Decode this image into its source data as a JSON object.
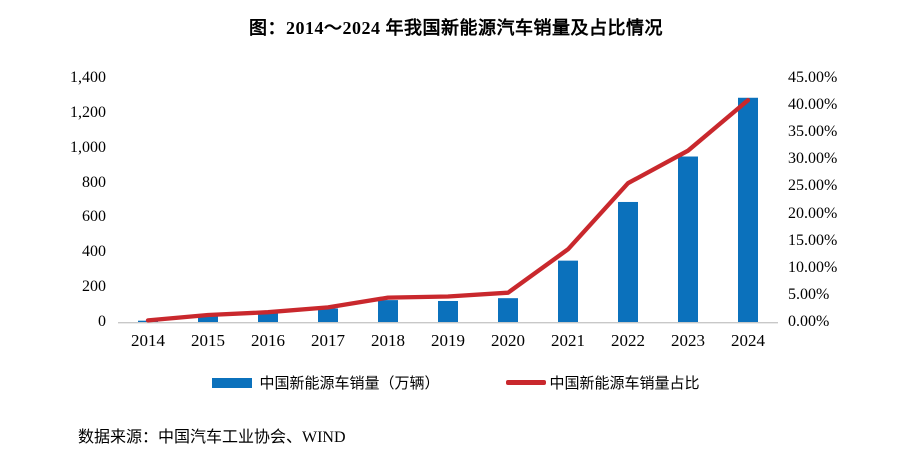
{
  "title": "图：2014～2024 年我国新能源汽车销量及占比情况",
  "source": "数据来源：中国汽车工业协会、WIND",
  "colors": {
    "bar": "#0b71bc",
    "line": "#c9282d",
    "axis_line": "#c8c8c8",
    "text": "#000000"
  },
  "legend": [
    {
      "label": "中国新能源车销量（万辆）",
      "type": "bar",
      "color": "#0b71bc"
    },
    {
      "label": "中国新能源车销量占比",
      "type": "line",
      "color": "#c9282d"
    }
  ],
  "chart_data": {
    "type": "bar+line",
    "title": "图：2014～2024 年我国新能源汽车销量及占比情况",
    "categories": [
      "2014",
      "2015",
      "2016",
      "2017",
      "2018",
      "2019",
      "2020",
      "2021",
      "2022",
      "2023",
      "2024"
    ],
    "series": [
      {
        "name": "中国新能源车销量（万辆）",
        "type": "bar",
        "axis": "left",
        "color": "#0b71bc",
        "values": [
          7.5,
          33.1,
          50.7,
          77.7,
          125.6,
          120.6,
          136.7,
          352.1,
          688.7,
          949.5,
          1286.6
        ]
      },
      {
        "name": "中国新能源车销量占比",
        "type": "line",
        "axis": "right",
        "color": "#c9282d",
        "values_percent": [
          0.3,
          1.3,
          1.8,
          2.7,
          4.5,
          4.7,
          5.4,
          13.4,
          25.6,
          31.6,
          40.9
        ]
      }
    ],
    "left_axis": {
      "min": 0,
      "max": 1400,
      "ticks": [
        "1,400",
        "1,200",
        "1,000",
        "800",
        "600",
        "400",
        "200",
        "0"
      ]
    },
    "right_axis": {
      "min": 0,
      "max": 45,
      "ticks": [
        "45.00%",
        "40.00%",
        "35.00%",
        "30.00%",
        "25.00%",
        "20.00%",
        "15.00%",
        "10.00%",
        "5.00%",
        "0.00%"
      ]
    },
    "grid": false,
    "legend_position": "bottom"
  }
}
